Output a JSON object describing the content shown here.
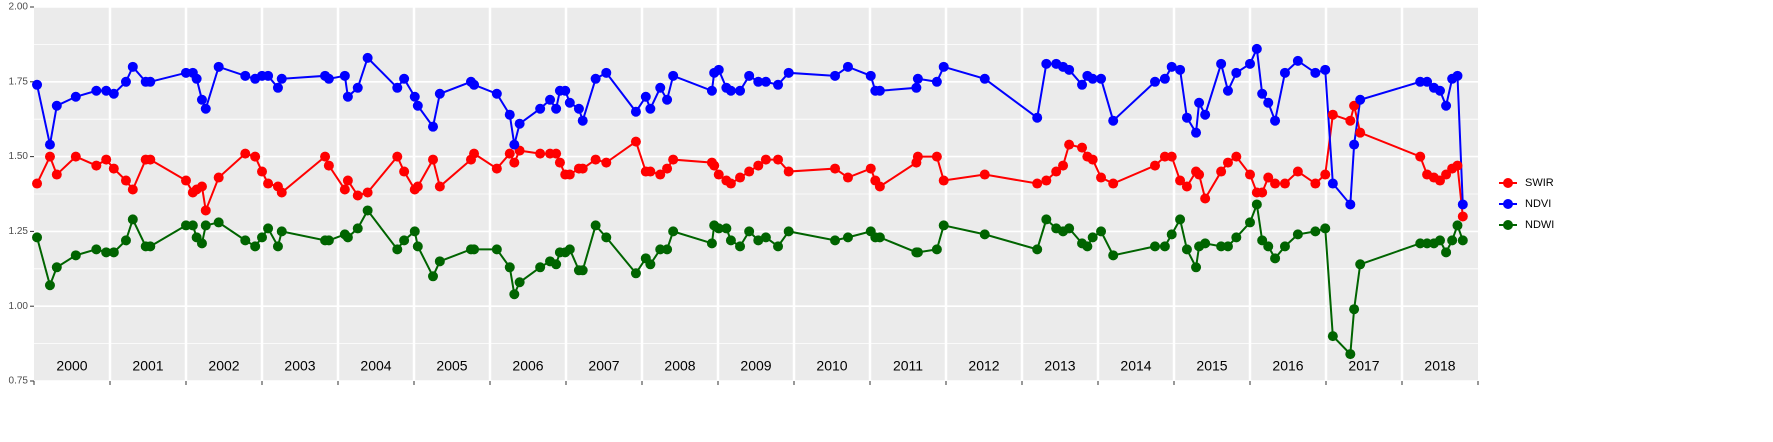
{
  "chart_data": {
    "type": "line",
    "year_labels": [
      "2000",
      "2001",
      "2002",
      "2003",
      "2004",
      "2005",
      "2006",
      "2007",
      "2008",
      "2009",
      "2010",
      "2011",
      "2012",
      "2013",
      "2014",
      "2015",
      "2016",
      "2017",
      "2018"
    ],
    "x": [
      2000.04,
      2000.21,
      2000.3,
      2000.55,
      2000.82,
      2000.95,
      2001.05,
      2001.21,
      2001.3,
      2001.47,
      2001.53,
      2002.0,
      2002.09,
      2002.14,
      2002.21,
      2002.26,
      2002.43,
      2002.78,
      2002.91,
      2003.0,
      2003.08,
      2003.21,
      2003.26,
      2003.83,
      2003.88,
      2004.09,
      2004.13,
      2004.26,
      2004.39,
      2004.78,
      2004.87,
      2005.01,
      2005.05,
      2005.25,
      2005.34,
      2005.75,
      2005.79,
      2006.09,
      2006.26,
      2006.32,
      2006.39,
      2006.66,
      2006.79,
      2006.87,
      2006.92,
      2006.99,
      2007.05,
      2007.17,
      2007.22,
      2007.39,
      2007.53,
      2007.92,
      2008.05,
      2008.11,
      2008.24,
      2008.33,
      2008.41,
      2008.92,
      2008.95,
      2009.01,
      2009.11,
      2009.17,
      2009.29,
      2009.41,
      2009.53,
      2009.63,
      2009.79,
      2009.93,
      2010.54,
      2010.71,
      2011.01,
      2011.07,
      2011.13,
      2011.61,
      2011.63,
      2011.88,
      2011.97,
      2012.51,
      2013.2,
      2013.32,
      2013.45,
      2013.54,
      2013.62,
      2013.79,
      2013.86,
      2013.93,
      2014.04,
      2014.2,
      2014.75,
      2014.88,
      2014.97,
      2015.08,
      2015.17,
      2015.29,
      2015.33,
      2015.41,
      2015.62,
      2015.71,
      2015.82,
      2016.0,
      2016.09,
      2016.16,
      2016.24,
      2016.33,
      2016.46,
      2016.63,
      2016.86,
      2016.99,
      2017.09,
      2017.32,
      2017.37,
      2017.45,
      2018.24,
      2018.33,
      2018.42,
      2018.5,
      2018.58,
      2018.66,
      2018.73,
      2018.8
    ],
    "series": [
      {
        "name": "SWIR",
        "color": "#ff0000",
        "values": [
          1.41,
          1.5,
          1.44,
          1.5,
          1.47,
          1.49,
          1.46,
          1.42,
          1.39,
          1.49,
          1.49,
          1.42,
          1.38,
          1.39,
          1.4,
          1.32,
          1.43,
          1.51,
          1.5,
          1.45,
          1.41,
          1.4,
          1.38,
          1.5,
          1.47,
          1.39,
          1.42,
          1.37,
          1.38,
          1.5,
          1.45,
          1.39,
          1.4,
          1.49,
          1.4,
          1.49,
          1.51,
          1.46,
          1.51,
          1.48,
          1.52,
          1.51,
          1.51,
          1.51,
          1.48,
          1.44,
          1.44,
          1.46,
          1.46,
          1.49,
          1.48,
          1.55,
          1.45,
          1.45,
          1.44,
          1.46,
          1.49,
          1.48,
          1.47,
          1.44,
          1.42,
          1.41,
          1.43,
          1.45,
          1.47,
          1.49,
          1.49,
          1.45,
          1.46,
          1.43,
          1.46,
          1.42,
          1.4,
          1.48,
          1.5,
          1.5,
          1.42,
          1.44,
          1.41,
          1.42,
          1.45,
          1.47,
          1.54,
          1.53,
          1.5,
          1.49,
          1.43,
          1.41,
          1.47,
          1.5,
          1.5,
          1.42,
          1.4,
          1.45,
          1.44,
          1.36,
          1.45,
          1.48,
          1.5,
          1.44,
          1.38,
          1.38,
          1.43,
          1.41,
          1.41,
          1.45,
          1.41,
          1.44,
          1.64,
          1.62,
          1.67,
          1.58,
          1.5,
          1.44,
          1.43,
          1.42,
          1.44,
          1.46,
          1.47,
          1.3
        ]
      },
      {
        "name": "NDVI",
        "color": "#0000ff",
        "values": [
          1.74,
          1.54,
          1.67,
          1.7,
          1.72,
          1.72,
          1.71,
          1.75,
          1.8,
          1.75,
          1.75,
          1.78,
          1.78,
          1.76,
          1.69,
          1.66,
          1.8,
          1.77,
          1.76,
          1.77,
          1.77,
          1.73,
          1.76,
          1.77,
          1.76,
          1.77,
          1.7,
          1.73,
          1.83,
          1.73,
          1.76,
          1.7,
          1.67,
          1.6,
          1.71,
          1.75,
          1.74,
          1.71,
          1.64,
          1.54,
          1.61,
          1.66,
          1.69,
          1.66,
          1.72,
          1.72,
          1.68,
          1.66,
          1.62,
          1.76,
          1.78,
          1.65,
          1.7,
          1.66,
          1.73,
          1.69,
          1.77,
          1.72,
          1.78,
          1.79,
          1.73,
          1.72,
          1.72,
          1.77,
          1.75,
          1.75,
          1.74,
          1.78,
          1.77,
          1.8,
          1.77,
          1.72,
          1.72,
          1.73,
          1.76,
          1.75,
          1.8,
          1.76,
          1.63,
          1.81,
          1.81,
          1.8,
          1.79,
          1.74,
          1.77,
          1.76,
          1.76,
          1.62,
          1.75,
          1.76,
          1.8,
          1.79,
          1.63,
          1.58,
          1.68,
          1.64,
          1.81,
          1.72,
          1.78,
          1.81,
          1.86,
          1.71,
          1.68,
          1.62,
          1.78,
          1.82,
          1.78,
          1.79,
          1.41,
          1.34,
          1.54,
          1.69,
          1.75,
          1.75,
          1.73,
          1.72,
          1.67,
          1.76,
          1.77,
          1.34
        ]
      },
      {
        "name": "NDWI",
        "color": "#006400",
        "values": [
          1.23,
          1.07,
          1.13,
          1.17,
          1.19,
          1.18,
          1.18,
          1.22,
          1.29,
          1.2,
          1.2,
          1.27,
          1.27,
          1.23,
          1.21,
          1.27,
          1.28,
          1.22,
          1.2,
          1.23,
          1.26,
          1.2,
          1.25,
          1.22,
          1.22,
          1.24,
          1.23,
          1.26,
          1.32,
          1.19,
          1.22,
          1.25,
          1.2,
          1.1,
          1.15,
          1.19,
          1.19,
          1.19,
          1.13,
          1.04,
          1.08,
          1.13,
          1.15,
          1.14,
          1.18,
          1.18,
          1.19,
          1.12,
          1.12,
          1.27,
          1.23,
          1.11,
          1.16,
          1.14,
          1.19,
          1.19,
          1.25,
          1.21,
          1.27,
          1.26,
          1.26,
          1.22,
          1.2,
          1.25,
          1.22,
          1.23,
          1.2,
          1.25,
          1.22,
          1.23,
          1.25,
          1.23,
          1.23,
          1.18,
          1.18,
          1.19,
          1.27,
          1.24,
          1.19,
          1.29,
          1.26,
          1.25,
          1.26,
          1.21,
          1.2,
          1.23,
          1.25,
          1.17,
          1.2,
          1.2,
          1.24,
          1.29,
          1.19,
          1.13,
          1.2,
          1.21,
          1.2,
          1.2,
          1.23,
          1.28,
          1.34,
          1.22,
          1.2,
          1.16,
          1.2,
          1.24,
          1.25,
          1.26,
          0.9,
          0.84,
          0.99,
          1.14,
          1.21,
          1.21,
          1.21,
          1.22,
          1.18,
          1.22,
          1.27,
          1.22
        ]
      }
    ],
    "xlim": [
      2000,
      2019
    ],
    "xticks": [
      2000,
      2001,
      2002,
      2003,
      2004,
      2005,
      2006,
      2007,
      2008,
      2009,
      2010,
      2011,
      2012,
      2013,
      2014,
      2015,
      2016,
      2017,
      2018,
      2019
    ],
    "ylim": [
      0.75,
      2.0
    ],
    "yticks": [
      {
        "value": 0.75,
        "label": "0.75"
      },
      {
        "value": 1.0,
        "label": "1.00"
      },
      {
        "value": 1.25,
        "label": "1.25"
      },
      {
        "value": 1.5,
        "label": "1.50"
      },
      {
        "value": 1.75,
        "label": "1.75"
      },
      {
        "value": 2.0,
        "label": "2.00"
      }
    ],
    "grid": true,
    "legend": "right"
  }
}
